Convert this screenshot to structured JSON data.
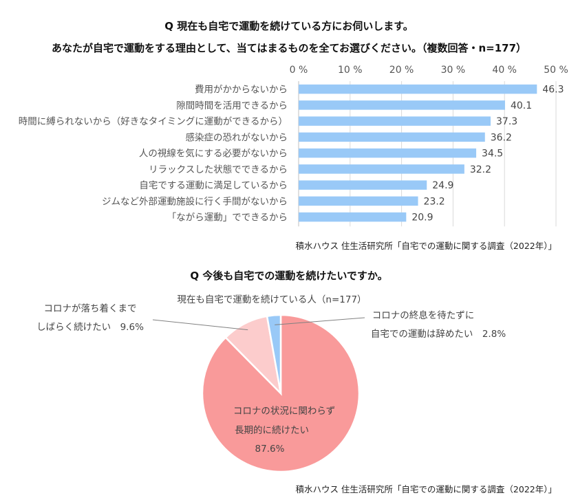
{
  "chart_data": [
    {
      "type": "bar",
      "orientation": "horizontal",
      "title_lines": [
        "Q 現在も自宅で運動を続けている方にお伺いします。",
        "あなたが自宅で運動をする理由として、当てはまるものを全てお選びください。（複数回答・n=177）"
      ],
      "categories": [
        "費用がかからないから",
        "隙間時間を活用できるから",
        "時間に縛られないから（好きなタイミングに運動ができるから）",
        "感染症の恐れがないから",
        "人の視線を気にする必要がないから",
        "リラックスした状態でできるから",
        "自宅でする運動に満足しているから",
        "ジムなど外部運動施設に行く手間がないから",
        "「ながら運動」でできるから"
      ],
      "values": [
        46.3,
        40.1,
        37.3,
        36.2,
        34.5,
        32.2,
        24.9,
        23.2,
        20.9
      ],
      "value_labels": [
        "46.3",
        "40.1",
        "37.3",
        "36.2",
        "34.5",
        "32.2",
        "24.9",
        "23.2",
        "20.9"
      ],
      "xlim": [
        0,
        50
      ],
      "ticks": [
        0,
        10,
        20,
        30,
        40,
        50
      ],
      "tick_labels": [
        "0 %",
        "10 %",
        "20 %",
        "30 %",
        "40 %",
        "50 %"
      ],
      "axis_position": "top",
      "grid": true,
      "bar_color": "#99C9F7",
      "source": "積水ハウス 住生活研究所「自宅での運動に関する調査（2022年）」"
    },
    {
      "type": "pie",
      "title": "Q 今後も自宅での運動を続けたいですか。",
      "subtitle": "現在も自宅で運動を続けている人（n=177）",
      "slices": [
        {
          "label_lines": [
            "コロナの状況に関わらず",
            "長期的に続けたい",
            "87.6%"
          ],
          "value": 87.6,
          "color": "#F99A9A"
        },
        {
          "label_lines": [
            "コロナが落ち着くまで",
            "しばらく続けたい　9.6%"
          ],
          "value": 9.6,
          "color": "#FCCCCC"
        },
        {
          "label_lines": [
            "コロナの終息を待たずに",
            "自宅での運動は辞めたい　2.8%"
          ],
          "value": 2.8,
          "color": "#99C9F7"
        }
      ],
      "source": "積水ハウス 住生活研究所「自宅での運動に関する調査（2022年）」"
    }
  ]
}
